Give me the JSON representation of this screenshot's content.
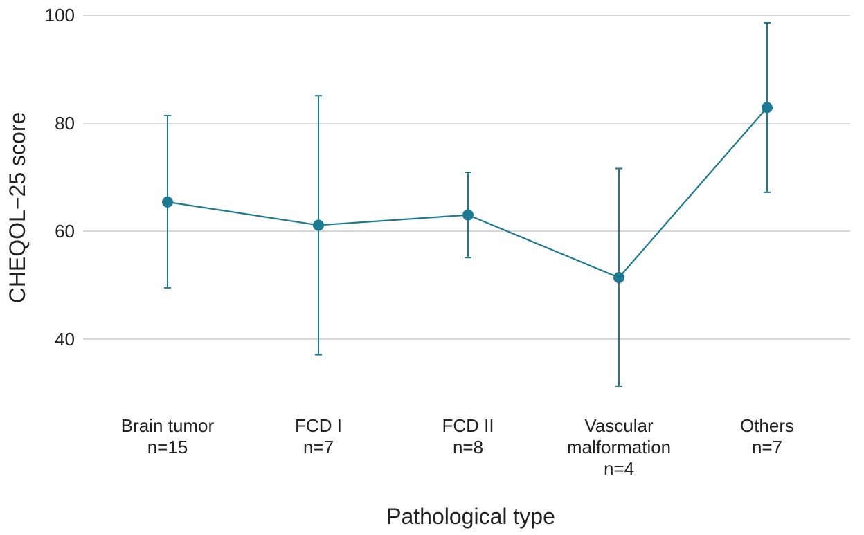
{
  "chart_data": {
    "type": "line",
    "title": "",
    "xlabel": "Pathological type",
    "ylabel": "CHEQOL−25 score",
    "ylim": [
      28,
      100
    ],
    "yticks": [
      40,
      60,
      80,
      100
    ],
    "grid": true,
    "color": "#1b7a92",
    "categories": [
      {
        "lines": [
          "Brain tumor",
          "n=15"
        ]
      },
      {
        "lines": [
          "FCD I",
          "n=7"
        ]
      },
      {
        "lines": [
          "FCD II",
          "n=8"
        ]
      },
      {
        "lines": [
          "Vascular",
          "malformation",
          "n=4"
        ]
      },
      {
        "lines": [
          "Others",
          "n=7"
        ]
      }
    ],
    "series": [
      {
        "name": "CHEQOL-25 score",
        "values": [
          65.4,
          61.1,
          63.0,
          51.4,
          82.9
        ],
        "lower": [
          49.5,
          37.1,
          55.1,
          31.3,
          67.2
        ],
        "upper": [
          81.4,
          85.1,
          70.9,
          71.6,
          98.6
        ]
      }
    ]
  }
}
